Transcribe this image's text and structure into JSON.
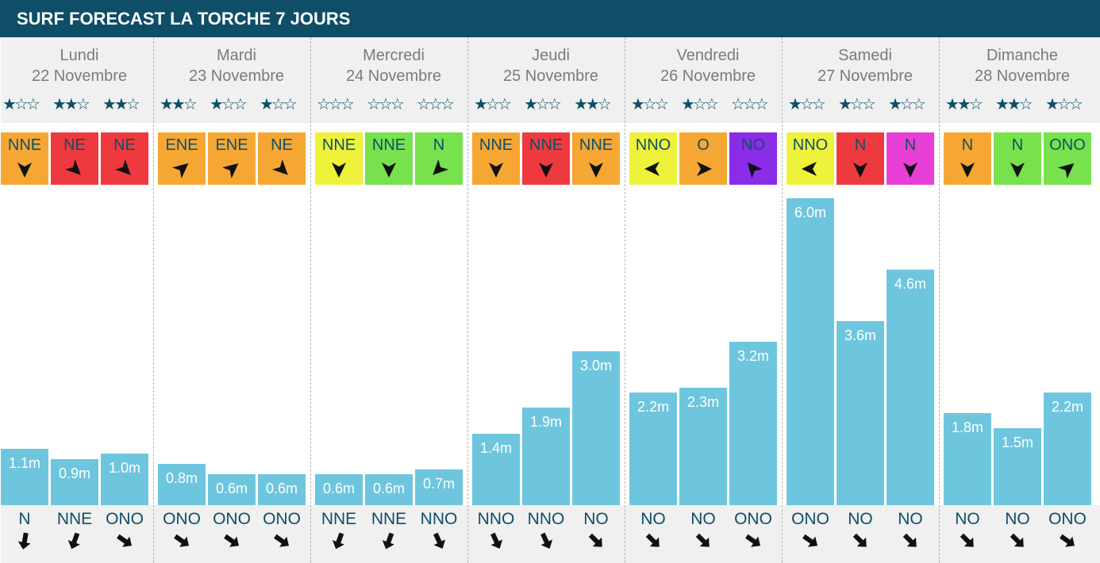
{
  "title": "SURF FORECAST LA TORCHE 7 JOURS",
  "colors": {
    "header_bg": "#0e4e66",
    "bar": "#6ec6de",
    "wind_tiles": {
      "orange": "#f6a733",
      "red": "#ee3a3f",
      "yellow": "#eef23a",
      "green": "#77e24d",
      "purple": "#8b2ce8",
      "magenta": "#e83fd6"
    }
  },
  "chart_data": {
    "type": "bar",
    "title": "SURF FORECAST LA TORCHE 7 JOURS",
    "ylabel": "",
    "xlabel": "",
    "unit": "m",
    "ylim": [
      0,
      6.0
    ],
    "grid": false,
    "days": [
      {
        "name": "Lundi",
        "date": "22 Novembre",
        "slots": [
          {
            "stars": 1,
            "wind": "NNE",
            "wind_color": "orange",
            "wind_arrow_deg": 90,
            "height": 1.1,
            "label": "1.1m",
            "swell": "N",
            "swell_arrow_deg": 100
          },
          {
            "stars": 2,
            "wind": "NE",
            "wind_color": "red",
            "wind_arrow_deg": 45,
            "height": 0.9,
            "label": "0.9m",
            "swell": "NNE",
            "swell_arrow_deg": 110
          },
          {
            "stars": 2,
            "wind": "NE",
            "wind_color": "red",
            "wind_arrow_deg": 45,
            "height": 1.0,
            "label": "1.0m",
            "swell": "ONO",
            "swell_arrow_deg": 35
          }
        ]
      },
      {
        "name": "Mardi",
        "date": "23 Novembre",
        "slots": [
          {
            "stars": 2,
            "wind": "ENE",
            "wind_color": "orange",
            "wind_arrow_deg": -40,
            "height": 0.8,
            "label": "0.8m",
            "swell": "ONO",
            "swell_arrow_deg": 35
          },
          {
            "stars": 1,
            "wind": "ENE",
            "wind_color": "orange",
            "wind_arrow_deg": -40,
            "height": 0.6,
            "label": "0.6m",
            "swell": "ONO",
            "swell_arrow_deg": 35
          },
          {
            "stars": 1,
            "wind": "NE",
            "wind_color": "orange",
            "wind_arrow_deg": 45,
            "height": 0.6,
            "label": "0.6m",
            "swell": "ONO",
            "swell_arrow_deg": 35
          }
        ]
      },
      {
        "name": "Mercredi",
        "date": "24 Novembre",
        "slots": [
          {
            "stars": 0,
            "wind": "NNE",
            "wind_color": "yellow",
            "wind_arrow_deg": 90,
            "height": 0.6,
            "label": "0.6m",
            "swell": "NNE",
            "swell_arrow_deg": 110
          },
          {
            "stars": 0,
            "wind": "NNE",
            "wind_color": "green",
            "wind_arrow_deg": 90,
            "height": 0.6,
            "label": "0.6m",
            "swell": "NNE",
            "swell_arrow_deg": 110
          },
          {
            "stars": 0,
            "wind": "N",
            "wind_color": "green",
            "wind_arrow_deg": 135,
            "height": 0.7,
            "label": "0.7m",
            "swell": "NNO",
            "swell_arrow_deg": 65
          }
        ]
      },
      {
        "name": "Jeudi",
        "date": "25 Novembre",
        "slots": [
          {
            "stars": 1,
            "wind": "NNE",
            "wind_color": "orange",
            "wind_arrow_deg": 90,
            "height": 1.4,
            "label": "1.4m",
            "swell": "NNO",
            "swell_arrow_deg": 65
          },
          {
            "stars": 1,
            "wind": "NNE",
            "wind_color": "red",
            "wind_arrow_deg": 90,
            "height": 1.9,
            "label": "1.9m",
            "swell": "NNO",
            "swell_arrow_deg": 65
          },
          {
            "stars": 2,
            "wind": "NNE",
            "wind_color": "orange",
            "wind_arrow_deg": 90,
            "height": 3.0,
            "label": "3.0m",
            "swell": "NO",
            "swell_arrow_deg": 45
          }
        ]
      },
      {
        "name": "Vendredi",
        "date": "26 Novembre",
        "slots": [
          {
            "stars": 1,
            "wind": "NNO",
            "wind_color": "yellow",
            "wind_arrow_deg": 180,
            "height": 2.2,
            "label": "2.2m",
            "swell": "NO",
            "swell_arrow_deg": 45
          },
          {
            "stars": 1,
            "wind": "O",
            "wind_color": "orange",
            "wind_arrow_deg": 0,
            "height": 2.3,
            "label": "2.3m",
            "swell": "NO",
            "swell_arrow_deg": 45
          },
          {
            "stars": 0,
            "wind": "NO",
            "wind_color": "purple",
            "wind_arrow_deg": -130,
            "height": 3.2,
            "label": "3.2m",
            "swell": "ONO",
            "swell_arrow_deg": 35
          }
        ]
      },
      {
        "name": "Samedi",
        "date": "27 Novembre",
        "slots": [
          {
            "stars": 1,
            "wind": "NNO",
            "wind_color": "yellow",
            "wind_arrow_deg": 180,
            "height": 6.0,
            "label": "6.0m",
            "swell": "ONO",
            "swell_arrow_deg": 35
          },
          {
            "stars": 1,
            "wind": "N",
            "wind_color": "red",
            "wind_arrow_deg": 90,
            "height": 3.6,
            "label": "3.6m",
            "swell": "NO",
            "swell_arrow_deg": 45
          },
          {
            "stars": 1,
            "wind": "N",
            "wind_color": "magenta",
            "wind_arrow_deg": 90,
            "height": 4.6,
            "label": "4.6m",
            "swell": "NO",
            "swell_arrow_deg": 45
          }
        ]
      },
      {
        "name": "Dimanche",
        "date": "28 Novembre",
        "slots": [
          {
            "stars": 2,
            "wind": "N",
            "wind_color": "orange",
            "wind_arrow_deg": 90,
            "height": 1.8,
            "label": "1.8m",
            "swell": "NO",
            "swell_arrow_deg": 45
          },
          {
            "stars": 2,
            "wind": "N",
            "wind_color": "green",
            "wind_arrow_deg": 90,
            "height": 1.5,
            "label": "1.5m",
            "swell": "NO",
            "swell_arrow_deg": 45
          },
          {
            "stars": 1,
            "wind": "ONO",
            "wind_color": "green",
            "wind_arrow_deg": -40,
            "height": 2.2,
            "label": "2.2m",
            "swell": "ONO",
            "swell_arrow_deg": 35
          }
        ]
      }
    ]
  }
}
